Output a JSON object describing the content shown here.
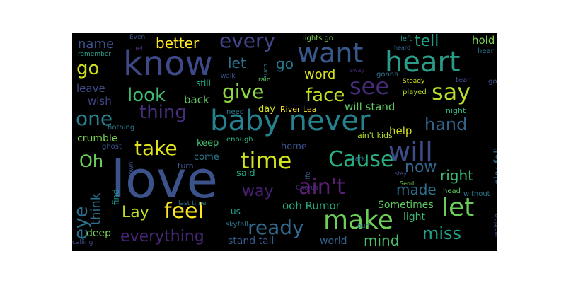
{
  "wordcloud": {
    "background": "#000000",
    "words": [
      {
        "text": "love",
        "color": "#3b528b"
      },
      {
        "text": "know",
        "color": "#3e4989"
      },
      {
        "text": "baby never",
        "color": "#26828e"
      },
      {
        "text": "want",
        "color": "#38588c"
      },
      {
        "text": "heart",
        "color": "#2a9d8a"
      },
      {
        "text": "say",
        "color": "#b5de2b"
      },
      {
        "text": "see",
        "color": "#472c7a"
      },
      {
        "text": "will",
        "color": "#3e4c8a"
      },
      {
        "text": "let",
        "color": "#6ccd5a"
      },
      {
        "text": "make",
        "color": "#6ece58"
      },
      {
        "text": "ain't",
        "color": "#5a1f72"
      },
      {
        "text": "time",
        "color": "#d2e21b"
      },
      {
        "text": "Cause",
        "color": "#2ab07f"
      },
      {
        "text": "feel",
        "color": "#fde725"
      },
      {
        "text": "ready",
        "color": "#31688e"
      },
      {
        "text": "way",
        "color": "#481f70"
      },
      {
        "text": "every",
        "color": "#414487"
      },
      {
        "text": "give",
        "color": "#8fd744"
      },
      {
        "text": "face",
        "color": "#bddf26"
      },
      {
        "text": "take",
        "color": "#e2e418"
      },
      {
        "text": "one",
        "color": "#277f8e"
      },
      {
        "text": "thing",
        "color": "#472f7d"
      },
      {
        "text": "look",
        "color": "#3fbc73"
      },
      {
        "text": "go",
        "color": "#d0e11c"
      },
      {
        "text": "Oh",
        "color": "#6ccd5a"
      },
      {
        "text": "hand",
        "color": "#33638d"
      },
      {
        "text": "miss",
        "color": "#1fa187"
      },
      {
        "text": "now",
        "color": "#31688e"
      },
      {
        "text": "right",
        "color": "#3bbb75"
      },
      {
        "text": "made",
        "color": "#2d708e"
      },
      {
        "text": "Lay",
        "color": "#b8de29"
      },
      {
        "text": "everything",
        "color": "#482677"
      },
      {
        "text": "mind",
        "color": "#4ac16d"
      },
      {
        "text": "eye",
        "color": "#2c728e"
      },
      {
        "text": "better",
        "color": "#fde725"
      },
      {
        "text": "name",
        "color": "#3b528b"
      },
      {
        "text": "let",
        "color": "#2c728e"
      },
      {
        "text": "go",
        "color": "#2a788e"
      },
      {
        "text": "word",
        "color": "#d8e219"
      },
      {
        "text": "tell",
        "color": "#1fa187"
      },
      {
        "text": "hold",
        "color": "#7ad151"
      },
      {
        "text": "think",
        "color": "#2d708e"
      },
      {
        "text": "back",
        "color": "#5ec962"
      },
      {
        "text": "wish",
        "color": "#404688"
      },
      {
        "text": "leave",
        "color": "#3e4c8a"
      },
      {
        "text": "will stand",
        "color": "#5ec962"
      },
      {
        "text": "help",
        "color": "#d2e21b"
      },
      {
        "text": "sky fall",
        "color": "#2e6e8e"
      },
      {
        "text": "ooh Rumor",
        "color": "#25ac82"
      },
      {
        "text": "Sometimes",
        "color": "#5ec962"
      },
      {
        "text": "light",
        "color": "#3bbb75"
      },
      {
        "text": "crumble",
        "color": "#7ad151"
      },
      {
        "text": "keep",
        "color": "#3fbc73"
      },
      {
        "text": "come",
        "color": "#2a788e"
      },
      {
        "text": "said",
        "color": "#22a884"
      },
      {
        "text": "home",
        "color": "#3b528b"
      },
      {
        "text": "stand tall",
        "color": "#38598c"
      },
      {
        "text": "world",
        "color": "#33638d"
      },
      {
        "text": "deep",
        "color": "#7ad151"
      },
      {
        "text": "day",
        "color": "#d2e21b"
      },
      {
        "text": "River Lea",
        "color": "#fde725"
      },
      {
        "text": "ain't kids",
        "color": "#b5de2b"
      },
      {
        "text": "still",
        "color": "#22a884"
      },
      {
        "text": "need",
        "color": "#2c728e"
      },
      {
        "text": "enough",
        "color": "#2ab07f"
      },
      {
        "text": "us",
        "color": "#1f9e89"
      },
      {
        "text": "skyfall",
        "color": "#2a788e"
      },
      {
        "text": "find",
        "color": "#20928c"
      },
      {
        "text": "turn",
        "color": "#3b528b"
      },
      {
        "text": "nothing",
        "color": "#2a788e"
      },
      {
        "text": "ghost",
        "color": "#3b528b"
      },
      {
        "text": "known",
        "color": "#3b528b"
      },
      {
        "text": "last time",
        "color": "#2a788e"
      },
      {
        "text": "calling",
        "color": "#3e4c8a"
      },
      {
        "text": "Even",
        "color": "#3b528b"
      },
      {
        "text": "met",
        "color": "#472f7d"
      },
      {
        "text": "remember",
        "color": "#2a9d8a"
      },
      {
        "text": "walk",
        "color": "#3b528b"
      },
      {
        "text": "rain",
        "color": "#5ec962"
      },
      {
        "text": "lights go",
        "color": "#7ad151"
      },
      {
        "text": "gonna",
        "color": "#2c728e"
      },
      {
        "text": "away",
        "color": "#482677"
      },
      {
        "text": "left",
        "color": "#20928c"
      },
      {
        "text": "heard",
        "color": "#33638d"
      },
      {
        "text": "hear",
        "color": "#2a788e"
      },
      {
        "text": "goes",
        "color": "#3b528b"
      },
      {
        "text": "tear",
        "color": "#3e4c8a"
      },
      {
        "text": "played",
        "color": "#b5de2b"
      },
      {
        "text": "Steady",
        "color": "#d2e21b"
      },
      {
        "text": "night",
        "color": "#2ab07f"
      },
      {
        "text": "dark",
        "color": "#2c728e"
      },
      {
        "text": "stay",
        "color": "#3e4c8a"
      },
      {
        "text": "Send",
        "color": "#7ad151"
      },
      {
        "text": "head",
        "color": "#5ec962"
      },
      {
        "text": "without",
        "color": "#2a788e"
      },
      {
        "text": "life",
        "color": "#3b528b"
      },
      {
        "text": "burn",
        "color": "#2a788e"
      },
      {
        "text": "Chorus",
        "color": "#472f7d"
      },
      {
        "text": "waiting",
        "color": "#3e4c8a"
      },
      {
        "text": "such",
        "color": "#2a788e"
      }
    ]
  }
}
